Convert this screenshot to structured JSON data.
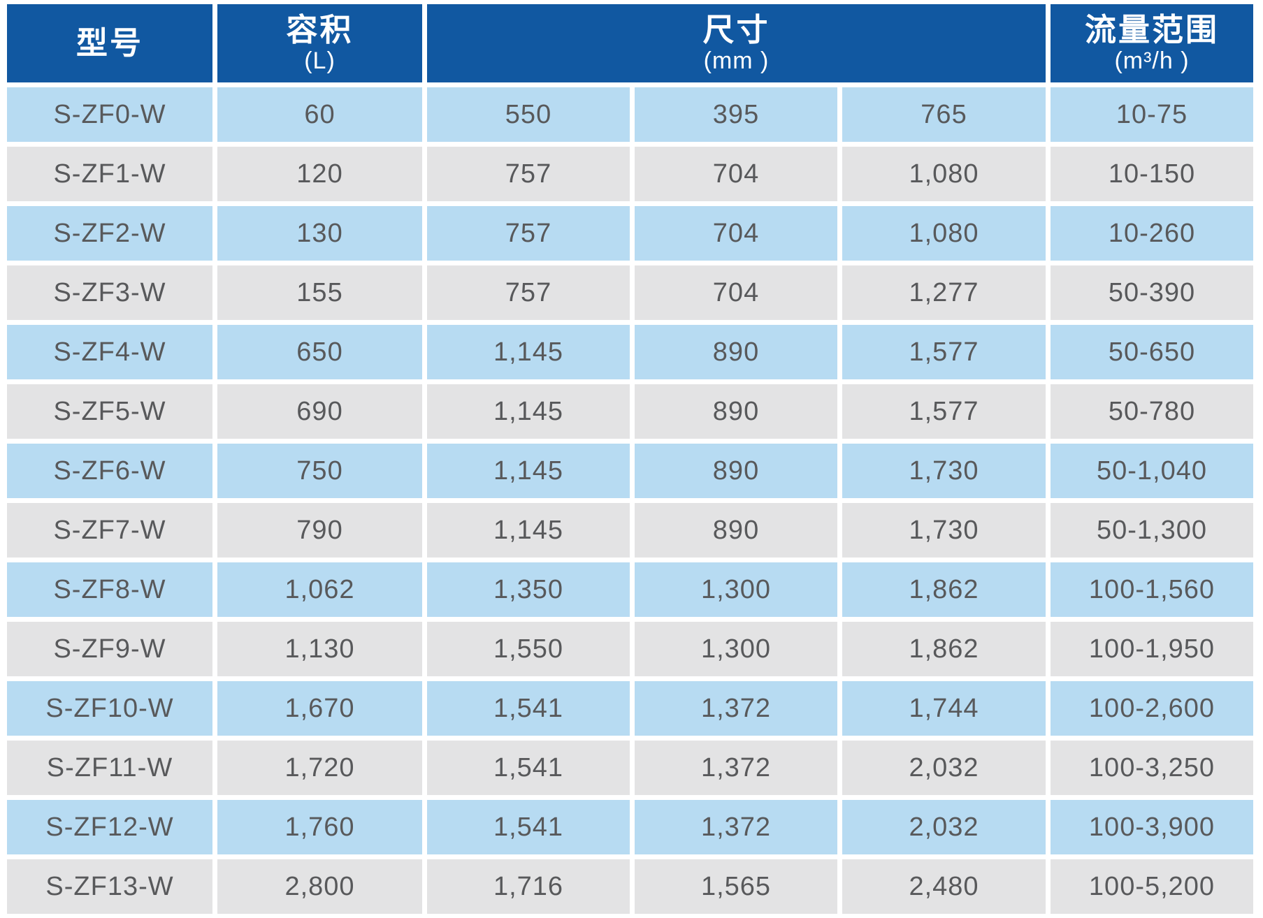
{
  "table": {
    "header": {
      "model": {
        "title": "型号"
      },
      "volume": {
        "title": "容积",
        "unit": "(L)"
      },
      "size": {
        "title": "尺寸",
        "unit": "(mm )"
      },
      "flow": {
        "title": "流量范围",
        "unit": "(m³/h )"
      }
    },
    "rows": [
      {
        "model": "S-ZF0-W",
        "volume": "60",
        "dim1": "550",
        "dim2": "395",
        "dim3": "765",
        "flow": "10-75"
      },
      {
        "model": "S-ZF1-W",
        "volume": "120",
        "dim1": "757",
        "dim2": "704",
        "dim3": "1,080",
        "flow": "10-150"
      },
      {
        "model": "S-ZF2-W",
        "volume": "130",
        "dim1": "757",
        "dim2": "704",
        "dim3": "1,080",
        "flow": "10-260"
      },
      {
        "model": "S-ZF3-W",
        "volume": "155",
        "dim1": "757",
        "dim2": "704",
        "dim3": "1,277",
        "flow": "50-390"
      },
      {
        "model": "S-ZF4-W",
        "volume": "650",
        "dim1": "1,145",
        "dim2": "890",
        "dim3": "1,577",
        "flow": "50-650"
      },
      {
        "model": "S-ZF5-W",
        "volume": "690",
        "dim1": "1,145",
        "dim2": "890",
        "dim3": "1,577",
        "flow": "50-780"
      },
      {
        "model": "S-ZF6-W",
        "volume": "750",
        "dim1": "1,145",
        "dim2": "890",
        "dim3": "1,730",
        "flow": "50-1,040"
      },
      {
        "model": "S-ZF7-W",
        "volume": "790",
        "dim1": "1,145",
        "dim2": "890",
        "dim3": "1,730",
        "flow": "50-1,300"
      },
      {
        "model": "S-ZF8-W",
        "volume": "1,062",
        "dim1": "1,350",
        "dim2": "1,300",
        "dim3": "1,862",
        "flow": "100-1,560"
      },
      {
        "model": "S-ZF9-W",
        "volume": "1,130",
        "dim1": "1,550",
        "dim2": "1,300",
        "dim3": "1,862",
        "flow": "100-1,950"
      },
      {
        "model": "S-ZF10-W",
        "volume": "1,670",
        "dim1": "1,541",
        "dim2": "1,372",
        "dim3": "1,744",
        "flow": "100-2,600"
      },
      {
        "model": "S-ZF11-W",
        "volume": "1,720",
        "dim1": "1,541",
        "dim2": "1,372",
        "dim3": "2,032",
        "flow": "100-3,250"
      },
      {
        "model": "S-ZF12-W",
        "volume": "1,760",
        "dim1": "1,541",
        "dim2": "1,372",
        "dim3": "2,032",
        "flow": "100-3,900"
      },
      {
        "model": "S-ZF13-W",
        "volume": "2,800",
        "dim1": "1,716",
        "dim2": "1,565",
        "dim3": "2,480",
        "flow": "100-5,200"
      }
    ]
  },
  "colors": {
    "header_bg": "#1158a1",
    "header_text": "#ffffff",
    "row_blue": "#b7dbf2",
    "row_gray": "#e3e3e4",
    "cell_text": "#58595b",
    "background": "#ffffff"
  },
  "chart_data": {
    "type": "table",
    "columns": [
      "型号",
      "容积 (L)",
      "尺寸 (mm)",
      "尺寸 (mm)",
      "尺寸 (mm)",
      "流量范围 (m³/h)"
    ],
    "rows": [
      [
        "S-ZF0-W",
        "60",
        "550",
        "395",
        "765",
        "10-75"
      ],
      [
        "S-ZF1-W",
        "120",
        "757",
        "704",
        "1,080",
        "10-150"
      ],
      [
        "S-ZF2-W",
        "130",
        "757",
        "704",
        "1,080",
        "10-260"
      ],
      [
        "S-ZF3-W",
        "155",
        "757",
        "704",
        "1,277",
        "50-390"
      ],
      [
        "S-ZF4-W",
        "650",
        "1,145",
        "890",
        "1,577",
        "50-650"
      ],
      [
        "S-ZF5-W",
        "690",
        "1,145",
        "890",
        "1,577",
        "50-780"
      ],
      [
        "S-ZF6-W",
        "750",
        "1,145",
        "890",
        "1,730",
        "50-1,040"
      ],
      [
        "S-ZF7-W",
        "790",
        "1,145",
        "890",
        "1,730",
        "50-1,300"
      ],
      [
        "S-ZF8-W",
        "1,062",
        "1,350",
        "1,300",
        "1,862",
        "100-1,560"
      ],
      [
        "S-ZF9-W",
        "1,130",
        "1,550",
        "1,300",
        "1,862",
        "100-1,950"
      ],
      [
        "S-ZF10-W",
        "1,670",
        "1,541",
        "1,372",
        "1,744",
        "100-2,600"
      ],
      [
        "S-ZF11-W",
        "1,720",
        "1,541",
        "1,372",
        "2,032",
        "100-3,250"
      ],
      [
        "S-ZF12-W",
        "1,760",
        "1,541",
        "1,372",
        "2,032",
        "100-3,900"
      ],
      [
        "S-ZF13-W",
        "2,800",
        "1,716",
        "1,565",
        "2,480",
        "100-5,200"
      ]
    ]
  }
}
